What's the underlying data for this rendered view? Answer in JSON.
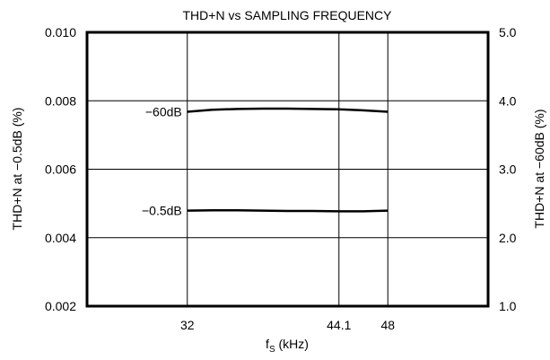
{
  "chart_data": {
    "type": "line",
    "title": "THD+N vs SAMPLING FREQUENCY",
    "xlabel": "f",
    "xlabel_sub": "S",
    "xlabel_unit": " (kHz)",
    "ylabel_left": "THD+N at −0.5dB (%)",
    "ylabel_right": "THD+N at −60dB (%)",
    "x_ticks": [
      "32",
      "44.1",
      "48"
    ],
    "x_tick_values": [
      32,
      44.1,
      48
    ],
    "xlim": [
      24,
      56
    ],
    "y_left_ticks": [
      "0.010",
      "0.008",
      "0.006",
      "0.004",
      "0.002"
    ],
    "y_left_tick_values": [
      0.01,
      0.008,
      0.006,
      0.004,
      0.002
    ],
    "y_left_lim": [
      0.002,
      0.01
    ],
    "y_right_ticks": [
      "5.0",
      "4.0",
      "3.0",
      "2.0",
      "1.0"
    ],
    "y_right_tick_values": [
      5.0,
      4.0,
      3.0,
      2.0,
      1.0
    ],
    "y_right_lim": [
      1.0,
      5.0
    ],
    "grid": true,
    "series": [
      {
        "name": "−60dB",
        "axis": "right",
        "x": [
          32,
          34,
          36,
          38,
          40,
          42,
          44.1,
          46,
          48
        ],
        "y": [
          3.84,
          3.87,
          3.88,
          3.885,
          3.885,
          3.88,
          3.875,
          3.86,
          3.84
        ]
      },
      {
        "name": "−0.5dB",
        "axis": "left",
        "x": [
          32,
          34,
          36,
          38,
          40,
          42,
          44.1,
          46,
          48
        ],
        "y": [
          0.00479,
          0.0048,
          0.0048,
          0.00479,
          0.00478,
          0.00478,
          0.00477,
          0.00477,
          0.00479
        ]
      }
    ]
  }
}
